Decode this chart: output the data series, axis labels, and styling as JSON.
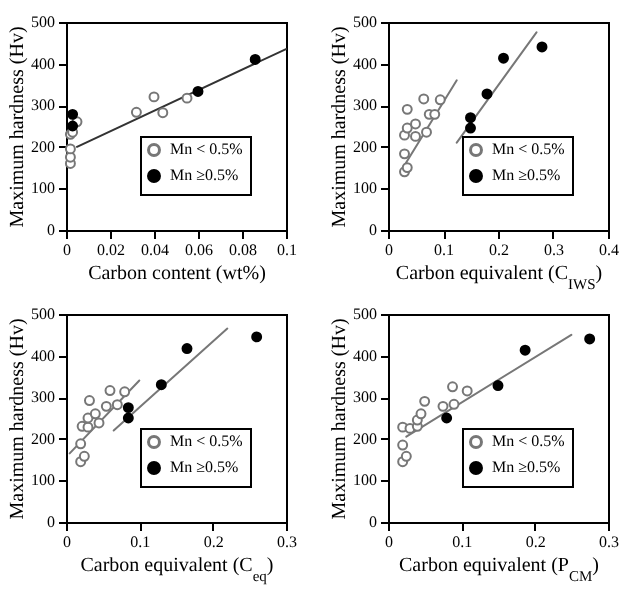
{
  "chart_data": [
    {
      "type": "scatter",
      "xlabel": "Carbon content (wt%)",
      "ylabel": "Maximum hardness (Hv)",
      "xlim": [
        0,
        0.1
      ],
      "xticks": [
        0,
        0.02,
        0.04,
        0.06,
        0.08,
        0.1
      ],
      "ylim": [
        0,
        500
      ],
      "yticks": [
        0,
        100,
        200,
        300,
        400,
        500
      ],
      "legend": "bottom right",
      "marker": "circle",
      "series": [
        {
          "name": "Mn < 0.5%",
          "color": "#777777",
          "x": [
            0.002,
            0.002,
            0.002,
            0.002,
            0.003,
            0.005,
            0.032,
            0.04,
            0.044,
            0.055
          ],
          "values": [
            160,
            175,
            195,
            230,
            235,
            260,
            283,
            320,
            282,
            317
          ]
        },
        {
          "name": "Mn ≥0.5%",
          "color": "#000000",
          "x": [
            0.003,
            0.003,
            0.06,
            0.086
          ],
          "values": [
            250,
            278,
            333,
            410
          ]
        },
        {
          "type": "line",
          "color": "#333333",
          "marker": "none",
          "x": [
            0.005,
            0.1
          ],
          "values": [
            200,
            435
          ]
        }
      ]
    },
    {
      "type": "scatter",
      "xlabel": "Carbon equivalent (C$_{IWS}$)",
      "ylabel": "Maximum hardness (Hv)",
      "xlim": [
        0,
        0.4
      ],
      "xticks": [
        0,
        0.1,
        0.2,
        0.3,
        0.4
      ],
      "ylim": [
        0,
        500
      ],
      "yticks": [
        0,
        100,
        200,
        300,
        400,
        500
      ],
      "legend": "bottom right",
      "marker": "circle",
      "series": [
        {
          "name": "Mn < 0.5%",
          "color": "#777777",
          "x": [
            0.03,
            0.035,
            0.03,
            0.03,
            0.035,
            0.035,
            0.05,
            0.05,
            0.07,
            0.065,
            0.075,
            0.085,
            0.095
          ],
          "values": [
            140,
            150,
            183,
            228,
            245,
            290,
            225,
            255,
            235,
            315,
            278,
            278,
            313
          ]
        },
        {
          "name": "Mn ≥0.5%",
          "color": "#000000",
          "x": [
            0.15,
            0.15,
            0.18,
            0.21,
            0.28
          ],
          "values": [
            245,
            270,
            327,
            413,
            440
          ]
        },
        {
          "type": "line",
          "color": "#777777",
          "marker": "none",
          "x": [
            0.025,
            0.125
          ],
          "values": [
            145,
            360
          ]
        },
        {
          "type": "line",
          "color": "#777777",
          "marker": "none",
          "x": [
            0.125,
            0.27
          ],
          "values": [
            210,
            475
          ]
        }
      ]
    },
    {
      "type": "scatter",
      "xlabel": "Carbon equivalent (C$_{eq}$)",
      "ylabel": "Maximum hardness (Hv)",
      "xlim": [
        0,
        0.3
      ],
      "xticks": [
        0,
        0.1,
        0.2,
        0.3
      ],
      "ylim": [
        0,
        500
      ],
      "yticks": [
        0,
        100,
        200,
        300,
        400,
        500
      ],
      "legend": "bottom right",
      "marker": "circle",
      "series": [
        {
          "name": "Mn < 0.5%",
          "color": "#777777",
          "x": [
            0.02,
            0.025,
            0.02,
            0.022,
            0.03,
            0.03,
            0.032,
            0.04,
            0.045,
            0.055,
            0.06,
            0.07,
            0.08
          ],
          "values": [
            145,
            158,
            188,
            230,
            228,
            250,
            292,
            260,
            238,
            278,
            316,
            282,
            313
          ]
        },
        {
          "name": "Mn ≥0.5%",
          "color": "#000000",
          "x": [
            0.085,
            0.085,
            0.13,
            0.165,
            0.26
          ],
          "values": [
            250,
            275,
            330,
            417,
            445
          ]
        },
        {
          "type": "line",
          "color": "#777777",
          "marker": "none",
          "x": [
            0.005,
            0.1
          ],
          "values": [
            165,
            340
          ]
        },
        {
          "type": "line",
          "color": "#777777",
          "marker": "none",
          "x": [
            0.065,
            0.22
          ],
          "values": [
            220,
            465
          ]
        }
      ]
    },
    {
      "type": "scatter",
      "xlabel": "Carbon equivalent (P$_{CM}$)",
      "ylabel": "Maximum hardness (Hv)",
      "xlim": [
        0,
        0.3
      ],
      "xticks": [
        0,
        0.1,
        0.2,
        0.3
      ],
      "ylim": [
        0,
        500
      ],
      "yticks": [
        0,
        100,
        200,
        300,
        400,
        500
      ],
      "legend": "bottom right",
      "marker": "circle",
      "series": [
        {
          "name": "Mn < 0.5%",
          "color": "#777777",
          "x": [
            0.02,
            0.025,
            0.02,
            0.02,
            0.03,
            0.04,
            0.04,
            0.045,
            0.05,
            0.075,
            0.09,
            0.088,
            0.108
          ],
          "values": [
            145,
            158,
            185,
            228,
            225,
            230,
            245,
            260,
            290,
            278,
            283,
            325,
            315
          ]
        },
        {
          "name": "Mn ≥0.5%",
          "color": "#000000",
          "x": [
            0.08,
            0.15,
            0.187,
            0.275
          ],
          "values": [
            250,
            328,
            413,
            440
          ]
        },
        {
          "type": "line",
          "color": "#777777",
          "marker": "none",
          "x": [
            0.025,
            0.25
          ],
          "values": [
            205,
            450
          ]
        }
      ]
    }
  ]
}
